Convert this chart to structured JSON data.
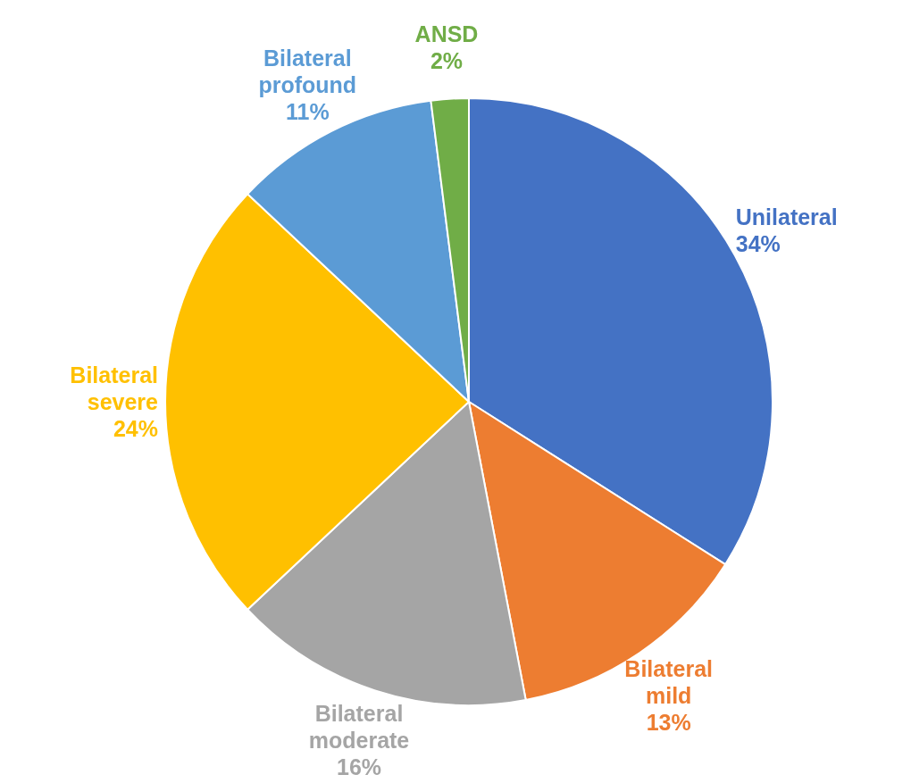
{
  "chart_data": {
    "type": "pie",
    "categories": [
      "Unilateral",
      "Bilateral mild",
      "Bilateral moderate",
      "Bilateral severe",
      "Bilateral profound",
      "ANSD"
    ],
    "values": [
      34,
      13,
      16,
      24,
      11,
      2
    ],
    "colors": [
      "#4472c4",
      "#ed7d31",
      "#a5a5a5",
      "#ffc000",
      "#5b9bd5",
      "#70ad47"
    ],
    "value_labels": [
      "34%",
      "13%",
      "16%",
      "24%",
      "11%",
      "2%"
    ],
    "legend": false
  }
}
